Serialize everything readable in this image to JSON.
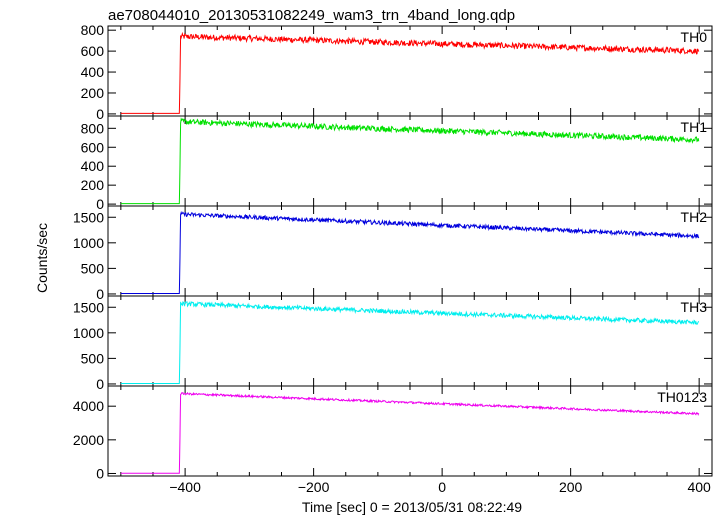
{
  "chart_data": {
    "type": "line",
    "title": "ae708044010_20130531082249_wam3_trn_4band_long.qdp",
    "xlabel": "Time [sec] 0 = 2013/05/31 08:22:49",
    "ylabel": "Counts/sec",
    "xlim": [
      -520,
      420
    ],
    "x_ticks": [
      -400,
      -200,
      0,
      200,
      400
    ],
    "x_tick_labels": [
      "−400",
      "−200",
      "0",
      "200",
      "400"
    ],
    "x_range": [
      -500,
      400
    ],
    "onset_x": -408,
    "panels": [
      {
        "label": "TH0",
        "color": "#ff0000",
        "ylim": [
          -20,
          840
        ],
        "y_ticks": [
          0,
          200,
          400,
          600,
          800
        ],
        "y_tick_labels": [
          "0",
          "200",
          "400",
          "600",
          "800"
        ],
        "pre_level": 5,
        "start_level": 740,
        "end_level": 600,
        "noise": 28
      },
      {
        "label": "TH1",
        "color": "#00e000",
        "ylim": [
          -20,
          930
        ],
        "y_ticks": [
          0,
          200,
          400,
          600,
          800
        ],
        "y_tick_labels": [
          "0",
          "200",
          "400",
          "600",
          "800"
        ],
        "pre_level": 5,
        "start_level": 870,
        "end_level": 680,
        "noise": 30
      },
      {
        "label": "TH2",
        "color": "#0000dd",
        "ylim": [
          -40,
          1720
        ],
        "y_ticks": [
          0,
          500,
          1000,
          1500
        ],
        "y_tick_labels": [
          "0",
          "500",
          "1000",
          "1500"
        ],
        "pre_level": 10,
        "start_level": 1560,
        "end_level": 1130,
        "noise": 40
      },
      {
        "label": "TH3",
        "color": "#00eeee",
        "ylim": [
          -40,
          1720
        ],
        "y_ticks": [
          0,
          500,
          1000,
          1500
        ],
        "y_tick_labels": [
          "0",
          "500",
          "1000",
          "1500"
        ],
        "pre_level": 10,
        "start_level": 1570,
        "end_level": 1200,
        "noise": 42
      },
      {
        "label": "TH0123",
        "color": "#ee00ee",
        "ylim": [
          -150,
          5200
        ],
        "y_ticks": [
          0,
          2000,
          4000
        ],
        "y_tick_labels": [
          "0",
          "2000",
          "4000"
        ],
        "pre_level": 15,
        "start_level": 4750,
        "end_level": 3550,
        "noise": 60
      }
    ],
    "grid": false,
    "legend": "none"
  }
}
